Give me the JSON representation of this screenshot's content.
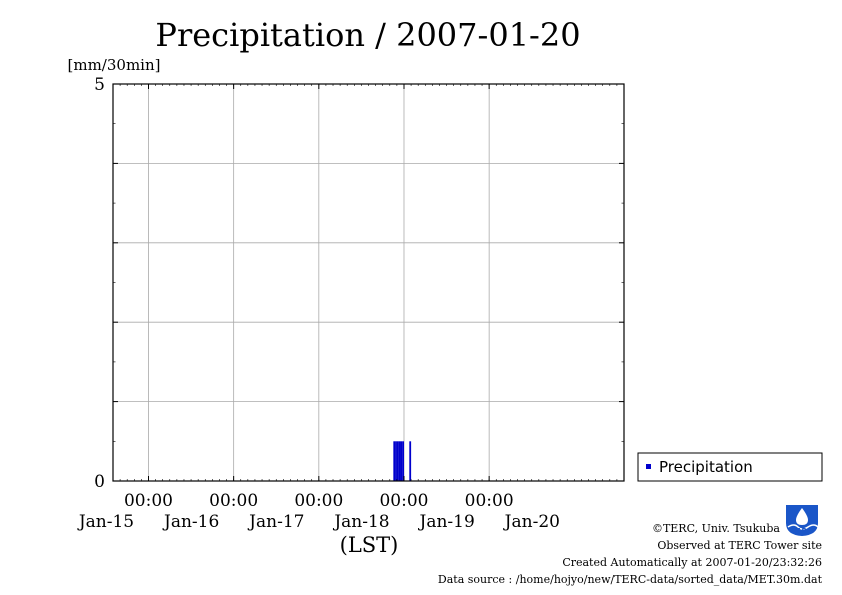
{
  "chart_data": {
    "type": "bar",
    "title": "Precipitation / 2007-01-20",
    "ylabel": "[mm/30min]",
    "xlabel": "(LST)",
    "ylim": [
      0,
      5
    ],
    "y_ticks": [
      {
        "value": 0,
        "label": "0"
      },
      {
        "value": 5,
        "label": "5"
      }
    ],
    "y_grid": [
      1,
      2,
      3,
      4
    ],
    "x_range": [
      "2007-01-14T14:00",
      "2007-01-20T14:00"
    ],
    "x_ticks": [
      {
        "time": "2007-01-15T00:00",
        "label": "00:00"
      },
      {
        "time": "2007-01-16T00:00",
        "label": "00:00"
      },
      {
        "time": "2007-01-17T00:00",
        "label": "00:00"
      },
      {
        "time": "2007-01-18T00:00",
        "label": "00:00"
      },
      {
        "time": "2007-01-19T00:00",
        "label": "00:00"
      }
    ],
    "date_labels": [
      {
        "time": "2007-01-15T00:00",
        "label": "Jan-15"
      },
      {
        "time": "2007-01-16T00:00",
        "label": "Jan-16"
      },
      {
        "time": "2007-01-17T00:00",
        "label": "Jan-17"
      },
      {
        "time": "2007-01-18T00:00",
        "label": "Jan-18"
      },
      {
        "time": "2007-01-19T00:00",
        "label": "Jan-19"
      },
      {
        "time": "2007-01-20T00:00",
        "label": "Jan-20"
      }
    ],
    "grid": true,
    "legend": {
      "position": "right",
      "label": "Precipitation"
    },
    "series": [
      {
        "name": "Precipitation",
        "color": "#0000cc",
        "points": [
          {
            "time": "2007-01-17T21:00",
            "value": 0.5
          },
          {
            "time": "2007-01-17T21:30",
            "value": 0.5
          },
          {
            "time": "2007-01-17T22:00",
            "value": 0.5
          },
          {
            "time": "2007-01-17T22:30",
            "value": 0.5
          },
          {
            "time": "2007-01-17T23:00",
            "value": 0.5
          },
          {
            "time": "2007-01-17T23:30",
            "value": 0.5
          },
          {
            "time": "2007-01-18T01:30",
            "value": 0.5
          }
        ]
      }
    ]
  },
  "credits": {
    "copyright": "©TERC, Univ. Tsukuba",
    "observed": "Observed at TERC Tower site",
    "created": "Created Automatically at 2007-01-20/23:32:26",
    "source": "Data source : /home/hojyo/new/TERC-data/sorted_data/MET.30m.dat",
    "logo_text": "TERC"
  }
}
